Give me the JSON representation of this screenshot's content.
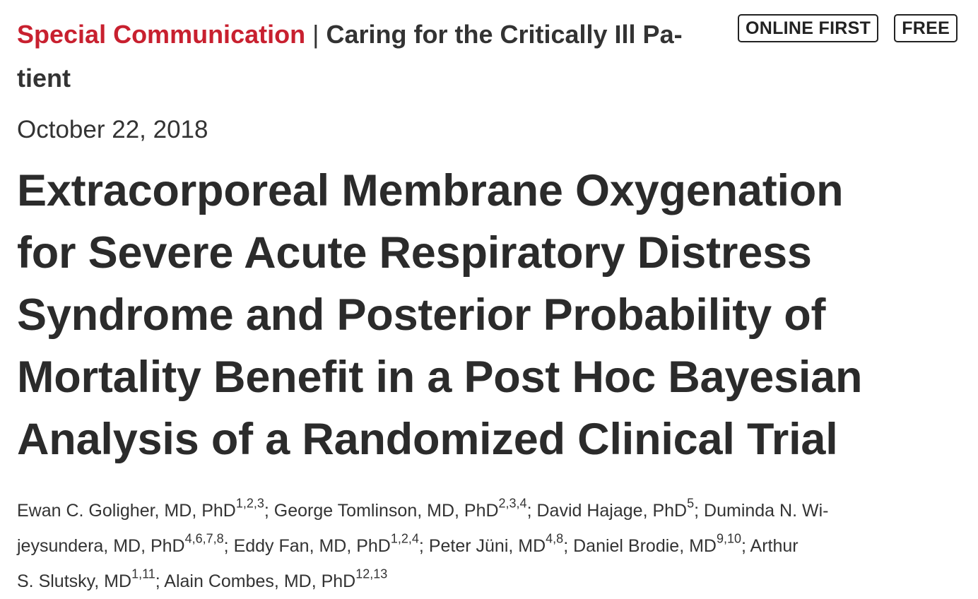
{
  "header": {
    "category": "Special Communication",
    "separator": "|",
    "section_line1": "Caring for the Critically Ill Pa-",
    "section_line2": "tient"
  },
  "badges": {
    "online_first": "ONLINE FIRST",
    "free": "FREE"
  },
  "date": "October 22, 2018",
  "title": {
    "line1": "Extracorporeal Membrane Oxygenation",
    "line2": "for Severe Acute Respiratory Distress",
    "line3": "Syndrome and Posterior Probability of",
    "line4": "Mortality Benefit in a Post Hoc Bayesian",
    "line5": "Analysis of a Randomized Clinical Trial"
  },
  "authors": {
    "a1_name": "Ewan C. Goligher, MD, PhD",
    "a1_sup": "1,2,3",
    "sep": ";",
    "a2_name": "George Tomlinson, MD, PhD",
    "a2_sup": "2,3,4",
    "a3_name": "David Hajage, PhD",
    "a3_sup": "5",
    "a4_name_part1": "Duminda N. Wi-",
    "a4_name_part2": "jeysundera, MD, PhD",
    "a4_sup": "4,6,7,8",
    "a5_name": "Eddy Fan, MD, PhD",
    "a5_sup": "1,2,4",
    "a6_name": "Peter Jüni, MD",
    "a6_sup": "4,8",
    "a7_name": "Daniel Brodie, MD",
    "a7_sup": "9,10",
    "a8_name_part1": "Arthur",
    "a8_name_part2": "S. Slutsky, MD",
    "a8_sup": "1,11",
    "a9_name": "Alain Combes, MD, PhD",
    "a9_sup": "12,13"
  },
  "colors": {
    "category": "#c8202f",
    "text": "#333333",
    "title": "#2b2b2b"
  }
}
